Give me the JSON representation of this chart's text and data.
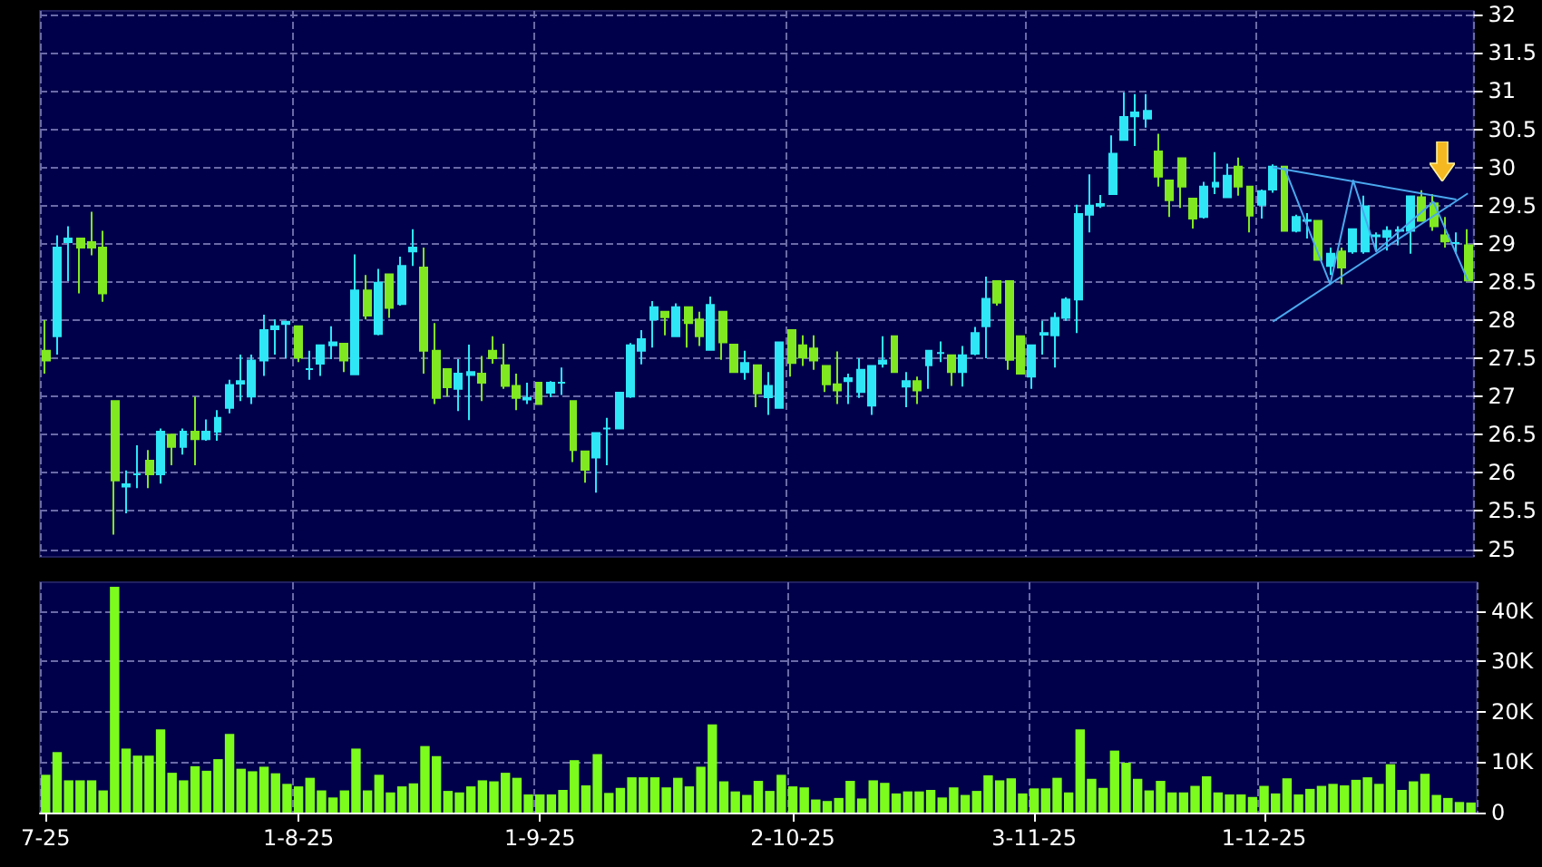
{
  "chart_data": [
    {
      "type": "candlestick",
      "categories": [
        null,
        null,
        null,
        null,
        null,
        null,
        null,
        null,
        null,
        null,
        null,
        null,
        null,
        null,
        null,
        null,
        null,
        null,
        null,
        null,
        null,
        null,
        null,
        null,
        null,
        null,
        null,
        null,
        null,
        null,
        null,
        null,
        null,
        null,
        null,
        null,
        null,
        null,
        null,
        null,
        null,
        null,
        null,
        null,
        null,
        null,
        null,
        null,
        null,
        null,
        null,
        null,
        null,
        null,
        null,
        null,
        null,
        null,
        null,
        null,
        null,
        null,
        null,
        null,
        null,
        null,
        null,
        null,
        null,
        null,
        null,
        null,
        null,
        null,
        null,
        null,
        null,
        null,
        null,
        null,
        null,
        null,
        null,
        null,
        null,
        null,
        null,
        null,
        null,
        null,
        null,
        null,
        null,
        null,
        null,
        null,
        null,
        null,
        null,
        null,
        null,
        null,
        null,
        null,
        null,
        null,
        null,
        null,
        null,
        null,
        null,
        null,
        null,
        null,
        null,
        null,
        null,
        null,
        null,
        null,
        null,
        null,
        null,
        null,
        null
      ],
      "ohlc": [
        [
          27.6,
          28.0,
          27.3,
          27.47
        ],
        [
          27.79,
          29.11,
          27.55,
          28.95
        ],
        [
          29.02,
          29.23,
          28.51,
          29.07
        ],
        [
          29.07,
          29.07,
          28.35,
          28.95
        ],
        [
          29.02,
          29.42,
          28.85,
          28.95
        ],
        [
          28.95,
          29.17,
          28.24,
          28.35
        ],
        [
          26.94,
          26.94,
          25.19,
          25.9
        ],
        [
          25.82,
          26.03,
          25.47,
          25.85
        ],
        [
          25.98,
          26.36,
          25.8,
          25.98
        ],
        [
          26.16,
          26.3,
          25.8,
          25.98
        ],
        [
          25.98,
          26.58,
          25.86,
          26.54
        ],
        [
          26.5,
          26.5,
          26.1,
          26.34
        ],
        [
          26.34,
          26.58,
          26.24,
          26.54
        ],
        [
          26.54,
          27.0,
          26.1,
          26.44
        ],
        [
          26.44,
          26.7,
          26.42,
          26.54
        ],
        [
          26.54,
          26.82,
          26.42,
          26.72
        ],
        [
          26.85,
          27.22,
          26.78,
          27.15
        ],
        [
          27.17,
          27.55,
          26.94,
          27.2
        ],
        [
          27.0,
          27.55,
          26.9,
          27.47
        ],
        [
          27.47,
          28.07,
          27.27,
          27.87
        ],
        [
          27.88,
          28.01,
          27.55,
          27.92
        ],
        [
          27.95,
          27.98,
          27.5,
          27.98
        ],
        [
          27.92,
          27.92,
          27.45,
          27.51
        ],
        [
          27.36,
          27.6,
          27.22,
          27.36
        ],
        [
          27.43,
          27.67,
          27.27,
          27.67
        ],
        [
          27.67,
          27.92,
          27.49,
          27.71
        ],
        [
          27.69,
          27.69,
          27.32,
          27.47
        ],
        [
          27.29,
          28.86,
          27.29,
          28.39
        ],
        [
          28.39,
          28.59,
          28.01,
          28.06
        ],
        [
          27.82,
          28.67,
          27.8,
          28.49
        ],
        [
          28.6,
          28.6,
          28.03,
          28.16
        ],
        [
          28.21,
          28.83,
          28.19,
          28.71
        ],
        [
          28.9,
          29.19,
          28.71,
          28.95
        ],
        [
          28.69,
          28.95,
          27.3,
          27.6
        ],
        [
          27.6,
          27.96,
          26.9,
          26.98
        ],
        [
          27.36,
          27.36,
          27.0,
          27.12
        ],
        [
          27.1,
          27.49,
          26.81,
          27.3
        ],
        [
          27.28,
          27.68,
          26.69,
          27.32
        ],
        [
          27.3,
          27.53,
          26.94,
          27.18
        ],
        [
          27.6,
          27.79,
          27.43,
          27.5
        ],
        [
          27.41,
          27.69,
          27.1,
          27.14
        ],
        [
          27.14,
          27.3,
          26.82,
          26.98
        ],
        [
          26.96,
          27.18,
          26.9,
          26.98
        ],
        [
          27.18,
          27.18,
          26.9,
          26.9
        ],
        [
          27.05,
          27.2,
          26.99,
          27.18
        ],
        [
          27.18,
          27.38,
          27.02,
          27.18
        ],
        [
          26.94,
          26.94,
          26.14,
          26.3
        ],
        [
          26.28,
          26.28,
          25.87,
          26.04
        ],
        [
          26.2,
          26.52,
          25.74,
          26.52
        ],
        [
          26.58,
          26.72,
          26.1,
          26.58
        ],
        [
          26.58,
          27.05,
          26.58,
          27.05
        ],
        [
          27.0,
          27.7,
          26.98,
          27.67
        ],
        [
          27.6,
          27.87,
          27.42,
          27.75
        ],
        [
          28.01,
          28.25,
          27.64,
          28.17
        ],
        [
          28.11,
          28.11,
          27.8,
          28.04
        ],
        [
          27.79,
          28.22,
          27.79,
          28.17
        ],
        [
          28.17,
          28.17,
          27.64,
          27.96
        ],
        [
          28.01,
          28.11,
          27.66,
          27.79
        ],
        [
          27.61,
          28.31,
          27.61,
          28.2
        ],
        [
          28.11,
          28.11,
          27.48,
          27.71
        ],
        [
          27.68,
          27.68,
          27.32,
          27.32
        ],
        [
          27.32,
          27.6,
          27.22,
          27.44
        ],
        [
          27.41,
          27.41,
          26.86,
          27.04
        ],
        [
          26.99,
          27.32,
          26.76,
          27.14
        ],
        [
          26.85,
          27.71,
          26.85,
          27.71
        ],
        [
          27.87,
          27.87,
          27.26,
          27.44
        ],
        [
          27.67,
          27.8,
          27.4,
          27.51
        ],
        [
          27.63,
          27.8,
          27.35,
          27.47
        ],
        [
          27.4,
          27.4,
          27.06,
          27.16
        ],
        [
          27.16,
          27.59,
          26.9,
          27.08
        ],
        [
          27.2,
          27.3,
          26.9,
          27.24
        ],
        [
          27.06,
          27.5,
          26.98,
          27.35
        ],
        [
          26.88,
          27.4,
          26.76,
          27.4
        ],
        [
          27.43,
          27.79,
          27.38,
          27.47
        ],
        [
          27.79,
          27.79,
          27.32,
          27.32
        ],
        [
          27.13,
          27.32,
          26.86,
          27.2
        ],
        [
          27.2,
          27.26,
          26.9,
          27.08
        ],
        [
          27.41,
          27.6,
          27.1,
          27.6
        ],
        [
          27.57,
          27.72,
          27.45,
          27.57
        ],
        [
          27.54,
          27.54,
          27.14,
          27.32
        ],
        [
          27.32,
          27.66,
          27.13,
          27.54
        ],
        [
          27.56,
          27.91,
          27.54,
          27.83
        ],
        [
          27.92,
          28.57,
          27.5,
          28.28
        ],
        [
          28.51,
          28.51,
          28.19,
          28.23
        ],
        [
          28.51,
          28.51,
          27.35,
          27.48
        ],
        [
          27.79,
          27.79,
          27.3,
          27.3
        ],
        [
          27.26,
          27.67,
          27.1,
          27.67
        ],
        [
          27.81,
          27.99,
          27.55,
          27.83
        ],
        [
          27.8,
          28.1,
          27.38,
          28.03
        ],
        [
          28.03,
          28.3,
          27.99,
          28.27
        ],
        [
          28.27,
          29.51,
          27.83,
          29.39
        ],
        [
          29.38,
          29.91,
          29.15,
          29.5
        ],
        [
          29.5,
          29.64,
          29.47,
          29.52
        ],
        [
          29.65,
          30.42,
          29.65,
          30.18
        ],
        [
          30.36,
          30.98,
          30.36,
          30.66
        ],
        [
          30.67,
          30.96,
          30.28,
          30.72
        ],
        [
          30.64,
          30.96,
          30.52,
          30.74
        ],
        [
          30.21,
          30.44,
          29.75,
          29.88
        ],
        [
          29.83,
          29.83,
          29.35,
          29.57
        ],
        [
          30.12,
          30.12,
          29.47,
          29.75
        ],
        [
          29.59,
          29.59,
          29.2,
          29.33
        ],
        [
          29.35,
          29.81,
          29.33,
          29.75
        ],
        [
          29.75,
          30.2,
          29.65,
          29.8
        ],
        [
          29.61,
          30.05,
          29.61,
          29.89
        ],
        [
          30.01,
          30.13,
          29.63,
          29.75
        ],
        [
          29.75,
          29.75,
          29.15,
          29.37
        ],
        [
          29.51,
          29.71,
          29.33,
          29.69
        ],
        [
          29.71,
          30.04,
          29.67,
          30.01
        ],
        [
          30.01,
          30.01,
          29.17,
          29.17
        ],
        [
          29.17,
          29.38,
          29.15,
          29.35
        ],
        [
          29.3,
          29.4,
          29.07,
          29.31
        ],
        [
          29.3,
          29.3,
          28.79,
          28.79
        ],
        [
          28.71,
          28.95,
          28.59,
          28.87
        ],
        [
          28.9,
          28.95,
          28.47,
          28.69
        ],
        [
          28.9,
          29.19,
          28.87,
          29.19
        ],
        [
          28.9,
          29.63,
          28.87,
          29.49
        ],
        [
          29.1,
          29.15,
          28.91,
          29.11
        ],
        [
          29.09,
          29.23,
          28.91,
          29.17
        ],
        [
          29.17,
          29.23,
          28.98,
          29.18
        ],
        [
          29.17,
          29.62,
          28.87,
          29.62
        ],
        [
          29.61,
          29.7,
          29.3,
          29.3
        ],
        [
          29.53,
          29.65,
          29.17,
          29.23
        ],
        [
          29.11,
          29.35,
          28.95,
          29.03
        ],
        [
          29.01,
          29.15,
          28.87,
          29.01
        ],
        [
          28.98,
          29.19,
          28.52,
          28.52
        ]
      ],
      "colors": [
        "#80e820",
        "#2ee6f6",
        "#2ee6f6",
        "#80e820",
        "#80e820",
        "#80e820",
        "#80e820",
        "#2ee6f6",
        "#2ee6f6",
        "#80e820",
        "#2ee6f6",
        "#80e820",
        "#2ee6f6",
        "#80e820",
        "#2ee6f6",
        "#2ee6f6",
        "#2ee6f6",
        "#2ee6f6",
        "#2ee6f6",
        "#2ee6f6",
        "#2ee6f6",
        "#2ee6f6",
        "#80e820",
        "#2ee6f6",
        "#2ee6f6",
        "#2ee6f6",
        "#80e820",
        "#2ee6f6",
        "#80e820",
        "#2ee6f6",
        "#80e820",
        "#2ee6f6",
        "#2ee6f6",
        "#80e820",
        "#80e820",
        "#80e820",
        "#2ee6f6",
        "#2ee6f6",
        "#80e820",
        "#80e820",
        "#80e820",
        "#80e820",
        "#2ee6f6",
        "#80e820",
        "#2ee6f6",
        "#2ee6f6",
        "#80e820",
        "#80e820",
        "#2ee6f6",
        "#2ee6f6",
        "#2ee6f6",
        "#2ee6f6",
        "#2ee6f6",
        "#2ee6f6",
        "#80e820",
        "#2ee6f6",
        "#80e820",
        "#80e820",
        "#2ee6f6",
        "#80e820",
        "#80e820",
        "#2ee6f6",
        "#80e820",
        "#2ee6f6",
        "#2ee6f6",
        "#80e820",
        "#80e820",
        "#80e820",
        "#80e820",
        "#80e820",
        "#2ee6f6",
        "#2ee6f6",
        "#2ee6f6",
        "#2ee6f6",
        "#80e820",
        "#2ee6f6",
        "#80e820",
        "#2ee6f6",
        "#2ee6f6",
        "#80e820",
        "#2ee6f6",
        "#2ee6f6",
        "#2ee6f6",
        "#80e820",
        "#80e820",
        "#80e820",
        "#2ee6f6",
        "#2ee6f6",
        "#2ee6f6",
        "#2ee6f6",
        "#2ee6f6",
        "#2ee6f6",
        "#2ee6f6",
        "#2ee6f6",
        "#2ee6f6",
        "#2ee6f6",
        "#2ee6f6",
        "#80e820",
        "#80e820",
        "#80e820",
        "#80e820",
        "#2ee6f6",
        "#2ee6f6",
        "#2ee6f6",
        "#80e820",
        "#80e820",
        "#2ee6f6",
        "#2ee6f6",
        "#80e820",
        "#2ee6f6",
        "#2ee6f6",
        "#80e820",
        "#2ee6f6",
        "#80e820",
        "#2ee6f6",
        "#2ee6f6",
        "#2ee6f6",
        "#2ee6f6",
        "#2ee6f6",
        "#2ee6f6",
        "#80e820",
        "#80e820",
        "#80e820",
        "#2ee6f6",
        "#80e820"
      ],
      "series": [
        {
          "type": "line",
          "color": "#4aa8ee",
          "values": [
            null,
            null,
            null,
            null,
            null,
            null,
            null,
            null,
            null,
            null,
            null,
            null,
            null,
            null,
            null,
            null,
            null,
            null,
            null,
            null,
            null,
            null,
            null,
            null,
            null,
            null,
            null,
            null,
            null,
            null,
            null,
            null,
            null,
            null,
            null,
            null,
            null,
            null,
            null,
            null,
            null,
            null,
            null,
            null,
            null,
            null,
            null,
            null,
            null,
            null,
            null,
            null,
            null,
            null,
            null,
            null,
            null,
            null,
            null,
            null,
            null,
            null,
            null,
            null,
            null,
            null,
            null,
            null,
            null,
            null,
            null,
            null,
            null,
            null,
            null,
            null,
            null,
            null,
            null,
            null,
            null,
            null,
            null,
            null,
            null,
            null,
            null,
            null,
            null,
            null,
            null,
            null,
            null,
            null,
            null,
            null,
            null,
            null,
            null,
            null,
            null,
            null,
            null,
            null,
            null,
            null,
            null,
            30.0,
            null,
            null,
            null,
            null,
            null,
            null,
            null,
            null,
            null,
            null,
            null,
            null,
            null,
            null,
            null,
            29.58,
            null
          ]
        },
        {
          "type": "line",
          "color": "#4aa8ee",
          "values": [
            null,
            null,
            null,
            null,
            null,
            null,
            null,
            null,
            null,
            null,
            null,
            null,
            null,
            null,
            null,
            null,
            null,
            null,
            null,
            null,
            null,
            null,
            null,
            null,
            null,
            null,
            null,
            null,
            null,
            null,
            null,
            null,
            null,
            null,
            null,
            null,
            null,
            null,
            null,
            null,
            null,
            null,
            null,
            null,
            null,
            null,
            null,
            null,
            null,
            null,
            null,
            null,
            null,
            null,
            null,
            null,
            null,
            null,
            null,
            null,
            null,
            null,
            null,
            null,
            null,
            null,
            null,
            null,
            null,
            null,
            null,
            null,
            null,
            null,
            null,
            null,
            null,
            null,
            null,
            null,
            null,
            null,
            null,
            null,
            null,
            null,
            null,
            null,
            null,
            null,
            null,
            null,
            null,
            null,
            null,
            null,
            null,
            null,
            null,
            null,
            null,
            null,
            null,
            null,
            null,
            null,
            null,
            27.98,
            null,
            null,
            null,
            null,
            null,
            null,
            null,
            null,
            null,
            null,
            null,
            null,
            null,
            null,
            null,
            null,
            29.66
          ]
        },
        {
          "type": "line",
          "color": "#4aa8ee",
          "values": [
            null,
            null,
            null,
            null,
            null,
            null,
            null,
            null,
            null,
            null,
            null,
            null,
            null,
            null,
            null,
            null,
            null,
            null,
            null,
            null,
            null,
            null,
            null,
            null,
            null,
            null,
            null,
            null,
            null,
            null,
            null,
            null,
            null,
            null,
            null,
            null,
            null,
            null,
            null,
            null,
            null,
            null,
            null,
            null,
            null,
            null,
            null,
            null,
            null,
            null,
            null,
            null,
            null,
            null,
            null,
            null,
            null,
            null,
            null,
            null,
            null,
            null,
            null,
            null,
            null,
            null,
            null,
            null,
            null,
            null,
            null,
            null,
            null,
            null,
            null,
            null,
            null,
            null,
            null,
            null,
            null,
            null,
            null,
            null,
            null,
            null,
            null,
            null,
            null,
            null,
            null,
            null,
            null,
            null,
            null,
            null,
            null,
            null,
            null,
            null,
            null,
            null,
            null,
            null,
            null,
            null,
            null,
            null,
            30.0,
            null,
            null,
            null,
            28.47,
            null,
            29.83,
            null,
            28.9,
            null,
            null,
            null,
            null,
            29.55,
            null,
            null,
            28.52
          ]
        }
      ],
      "ylim": [
        24.9,
        32.05
      ],
      "yticks": [
        25,
        25.5,
        26,
        26.5,
        27,
        27.5,
        28,
        28.5,
        29,
        29.5,
        30,
        30.5,
        31,
        31.5,
        32
      ],
      "grid": true,
      "tick_labels": "y"
    },
    {
      "type": "bar",
      "categories": [
        "7-25",
        null,
        null,
        null,
        null,
        null,
        null,
        null,
        null,
        null,
        null,
        null,
        null,
        null,
        null,
        null,
        null,
        null,
        null,
        null,
        null,
        null,
        "1-8-25",
        null,
        null,
        null,
        null,
        null,
        null,
        null,
        null,
        null,
        null,
        null,
        null,
        null,
        null,
        null,
        null,
        null,
        null,
        null,
        null,
        "1-9-25",
        null,
        null,
        null,
        null,
        null,
        null,
        null,
        null,
        null,
        null,
        null,
        null,
        null,
        null,
        null,
        null,
        null,
        null,
        null,
        null,
        null,
        "2-10-25",
        null,
        null,
        null,
        null,
        null,
        null,
        null,
        null,
        null,
        null,
        null,
        null,
        null,
        null,
        null,
        null,
        null,
        null,
        null,
        null,
        "3-11-25",
        null,
        null,
        null,
        null,
        null,
        null,
        null,
        null,
        null,
        null,
        null,
        null,
        null,
        null,
        null,
        null,
        null,
        null,
        null,
        "1-12-25",
        null,
        null,
        null,
        null,
        null,
        null,
        null,
        null,
        null,
        null,
        null,
        null,
        null,
        null,
        null,
        null,
        null,
        null
      ],
      "values": [
        7.5,
        12,
        6.4,
        6.4,
        6.4,
        4.4,
        44.8,
        12.7,
        11.3,
        11.3,
        16.5,
        7.9,
        6.4,
        9.2,
        8.3,
        10.6,
        15.6,
        8.7,
        8.2,
        9.1,
        7.8,
        5.7,
        5.2,
        6.9,
        4.4,
        3.0,
        4.4,
        12.7,
        4.4,
        7.5,
        4.0,
        5.2,
        5.8,
        13.2,
        11.2,
        4.3,
        4.0,
        5.2,
        6.4,
        6.2,
        7.9,
        6.9,
        3.6,
        3.6,
        3.6,
        4.5,
        10.4,
        5.4,
        11.6,
        3.9,
        4.9,
        7.0,
        7.0,
        7.0,
        5.0,
        6.9,
        5.2,
        9.1,
        17.5,
        6.2,
        4.2,
        3.5,
        6.3,
        4.3,
        7.5,
        5.2,
        5.0,
        2.6,
        2.3,
        2.9,
        6.3,
        2.8,
        6.4,
        5.9,
        3.8,
        4.2,
        4.2,
        4.5,
        3.0,
        5.0,
        3.5,
        4.3,
        7.4,
        6.4,
        6.8,
        3.8,
        4.8,
        4.8,
        6.9,
        4.0,
        16.5,
        6.7,
        4.9,
        12.3,
        9.9,
        6.7,
        4.4,
        6.3,
        4.0,
        4.0,
        5.3,
        7.2,
        4.0,
        3.6,
        3.6,
        3.1,
        5.3,
        3.8,
        6.8,
        3.6,
        4.7,
        5.3,
        5.7,
        5.4,
        6.5,
        7.0,
        5.7,
        9.6,
        4.5,
        6.2,
        7.7,
        3.5,
        2.9,
        2.1,
        2.0
      ],
      "color": "#7cfc1c",
      "ylim": [
        0,
        45.7
      ],
      "yticks": [
        0,
        {
          "value": 10,
          "label": "10K"
        },
        {
          "value": 20,
          "label": "20K"
        },
        {
          "value": 30,
          "label": "30K"
        },
        {
          "value": 40,
          "label": "40K"
        }
      ],
      "grid": true
    }
  ]
}
